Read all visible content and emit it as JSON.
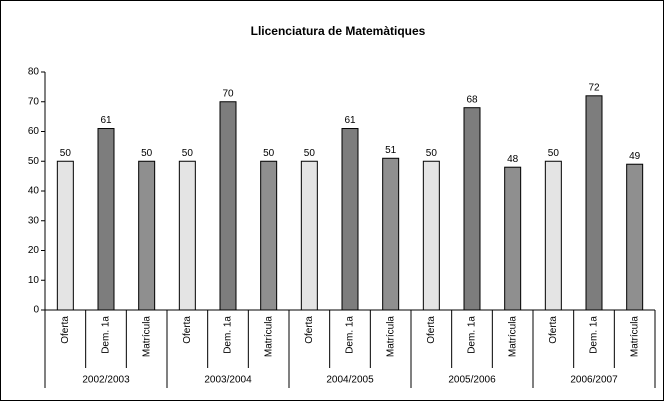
{
  "chart_data": {
    "type": "bar",
    "title": "Llicenciatura de Matemàtiques",
    "categories": [
      "2002/2003",
      "2003/2004",
      "2004/2005",
      "2005/2006",
      "2006/2007"
    ],
    "series": [
      {
        "name": "Oferta",
        "color": "#e4e4e4",
        "values": [
          50,
          50,
          50,
          50,
          50
        ]
      },
      {
        "name": "Dem. 1a",
        "color": "#7d7d7d",
        "values": [
          61,
          70,
          61,
          68,
          72
        ]
      },
      {
        "name": "Matrícula",
        "color": "#8f8f8f",
        "values": [
          50,
          50,
          51,
          48,
          49
        ]
      }
    ],
    "ylim": [
      0,
      80
    ],
    "yticks": [
      0,
      10,
      20,
      30,
      40,
      50,
      60,
      70,
      80
    ],
    "grid": false
  }
}
